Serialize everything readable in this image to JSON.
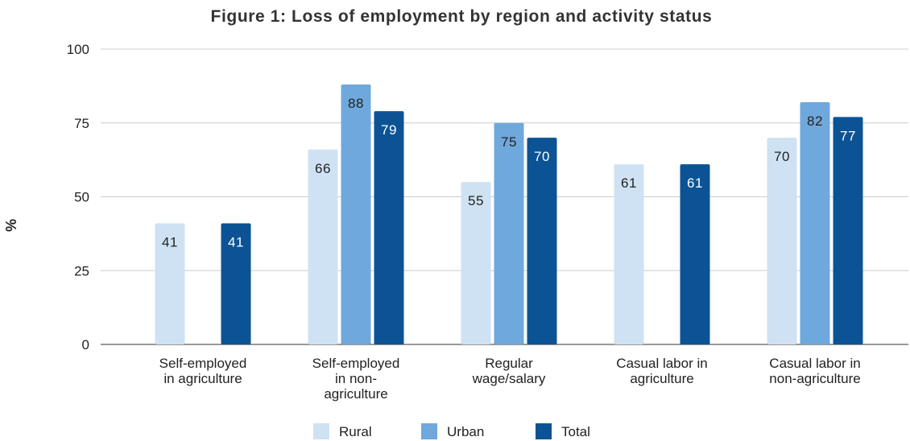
{
  "chart_data": {
    "type": "bar",
    "title": "Figure 1: Loss of employment by region and activity status",
    "xlabel": "",
    "ylabel": "%",
    "ylim": [
      0,
      100
    ],
    "yticks": [
      0,
      25,
      50,
      75,
      100
    ],
    "grid": true,
    "legend_position": "bottom",
    "categories": [
      [
        "Self-employed",
        "in agriculture"
      ],
      [
        "Self-employed",
        "in non-",
        "agriculture"
      ],
      [
        "Regular",
        "wage/salary"
      ],
      [
        "Casual labor in",
        "agriculture"
      ],
      [
        "Casual labor in",
        "non-agriculture"
      ]
    ],
    "series": [
      {
        "name": "Rural",
        "color": "#cfe2f3",
        "label_color": "#222222",
        "values": [
          41,
          66,
          55,
          61,
          70
        ]
      },
      {
        "name": "Urban",
        "color": "#6fa8dc",
        "label_color": "#222222",
        "values": [
          null,
          88,
          75,
          null,
          82
        ]
      },
      {
        "name": "Total",
        "color": "#0b5394",
        "label_color": "#ffffff",
        "values": [
          41,
          79,
          70,
          61,
          77
        ]
      }
    ]
  }
}
